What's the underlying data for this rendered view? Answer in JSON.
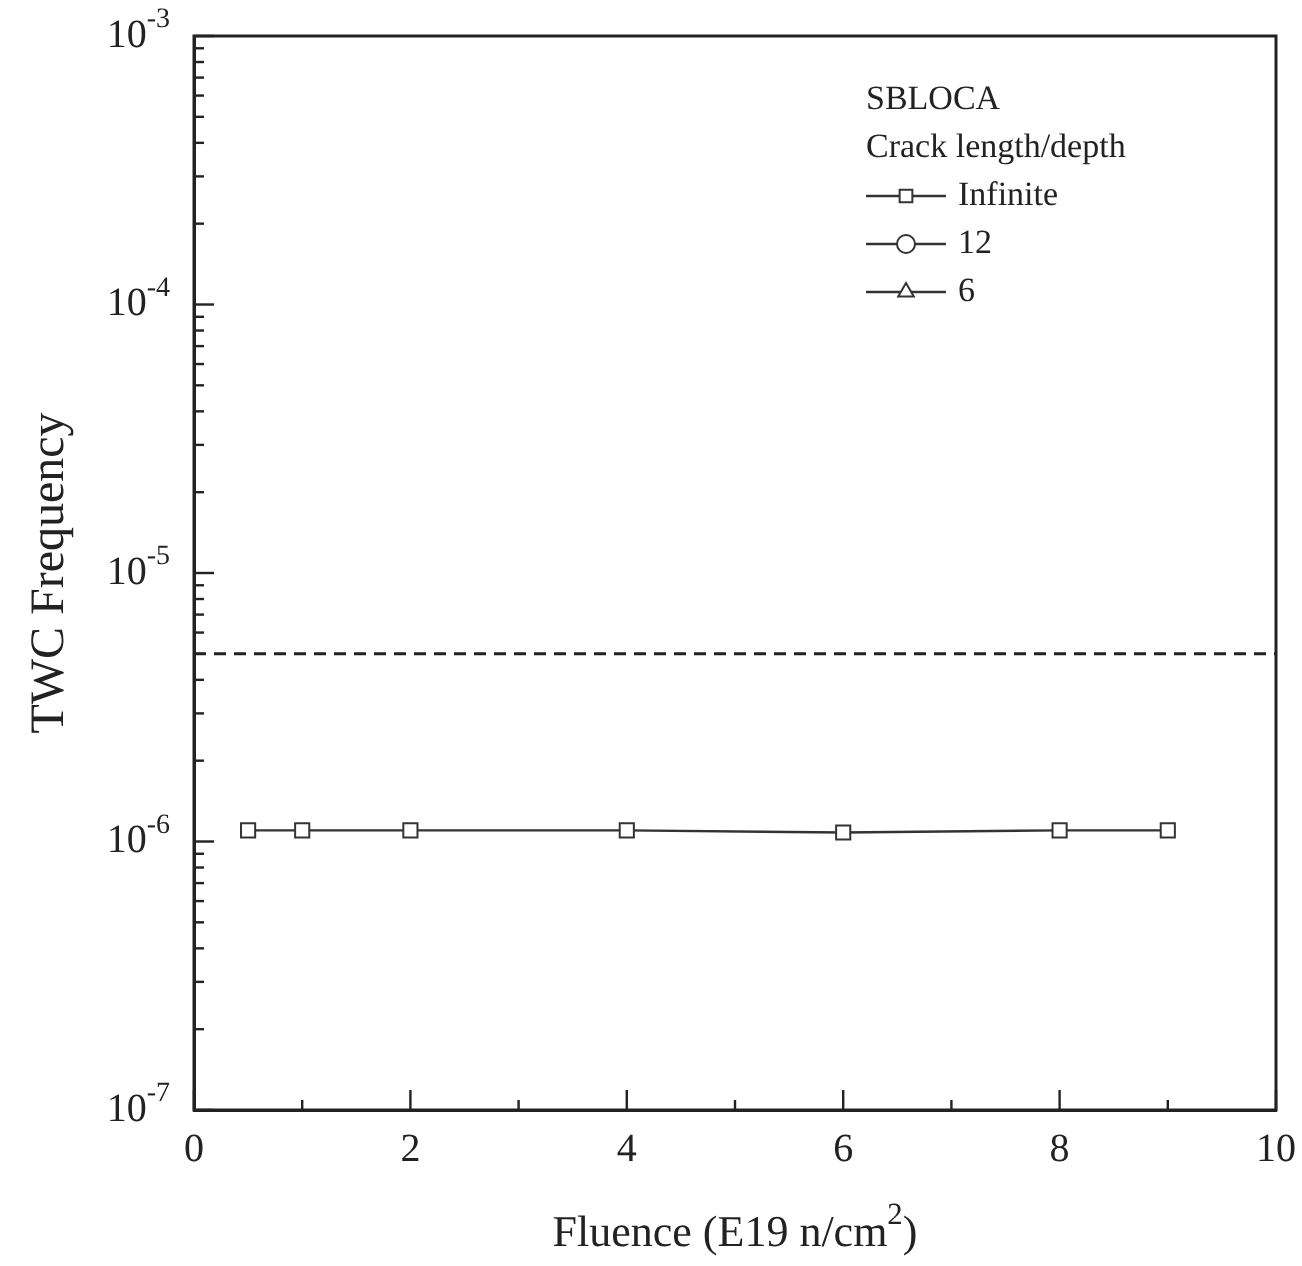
{
  "chart_data": {
    "type": "line",
    "xlabel": "Fluence (E19 n/cm$^{2}$)",
    "ylabel": "TWC Frequency",
    "legend_title": "SBLOCA\nCrack length/depth",
    "legend": "top right",
    "log": "y",
    "grid": false,
    "line_style": "solid",
    "x": [
      0.5,
      1,
      2,
      4,
      6,
      8,
      9
    ],
    "series": [
      {
        "name": "Infinite",
        "color": "#333333",
        "marker": "square",
        "values": [
          1.1e-06,
          1.1e-06,
          1.1e-06,
          1.1e-06,
          1.08e-06,
          1.1e-06,
          1.1e-06
        ]
      },
      {
        "name": "12",
        "color": "#333333",
        "marker": "circle",
        "values": [
          null,
          null,
          null,
          null,
          null,
          null,
          null
        ]
      },
      {
        "name": "6",
        "color": "#333333",
        "marker": "triangle",
        "values": [
          null,
          null,
          null,
          null,
          null,
          null,
          null
        ]
      }
    ],
    "xlim": [
      0,
      10
    ],
    "xticks": [
      0,
      {
        "value": 1,
        "label": null
      },
      2,
      {
        "value": 3,
        "label": null
      },
      4,
      {
        "value": 5,
        "label": null
      },
      6,
      {
        "value": 7,
        "label": null
      },
      8,
      {
        "value": 9,
        "label": null
      },
      10
    ],
    "ylim": [
      1e-07,
      0.001
    ],
    "yticks": [
      {
        "value": 1e-07,
        "label": "10$^{-7}$"
      },
      {
        "value": 2e-07,
        "label": null
      },
      {
        "value": 3e-07,
        "label": null
      },
      {
        "value": 4e-07,
        "label": null
      },
      {
        "value": 5e-07,
        "label": null
      },
      {
        "value": 6e-07,
        "label": null
      },
      {
        "value": 7e-07,
        "label": null
      },
      {
        "value": 8e-07,
        "label": null
      },
      {
        "value": 9e-07,
        "label": null
      },
      {
        "value": 1e-06,
        "label": "10$^{-6}$"
      },
      {
        "value": 2e-06,
        "label": null
      },
      {
        "value": 3e-06,
        "label": null
      },
      {
        "value": 4e-06,
        "label": null
      },
      {
        "value": 5e-06,
        "label": null
      },
      {
        "value": 6e-06,
        "label": null
      },
      {
        "value": 7e-06,
        "label": null
      },
      {
        "value": 8e-06,
        "label": null
      },
      {
        "value": 9e-06,
        "label": null
      },
      {
        "value": 1e-05,
        "label": "10$^{-5}$"
      },
      {
        "value": 2e-05,
        "label": null
      },
      {
        "value": 3e-05,
        "label": null
      },
      {
        "value": 4e-05,
        "label": null
      },
      {
        "value": 5e-05,
        "label": null
      },
      {
        "value": 6e-05,
        "label": null
      },
      {
        "value": 7e-05,
        "label": null
      },
      {
        "value": 8e-05,
        "label": null
      },
      {
        "value": 9e-05,
        "label": null
      },
      {
        "value": 0.0001,
        "label": "10$^{-4}$"
      },
      {
        "value": 0.0002,
        "label": null
      },
      {
        "value": 0.0003,
        "label": null
      },
      {
        "value": 0.0004,
        "label": null
      },
      {
        "value": 0.0005,
        "label": null
      },
      {
        "value": 0.0006,
        "label": null
      },
      {
        "value": 0.0007,
        "label": null
      },
      {
        "value": 0.0008,
        "label": null
      },
      {
        "value": 0.0009,
        "label": null
      },
      {
        "value": 0.001,
        "label": "10$^{-3}$"
      }
    ],
    "ref_lines": [
      {
        "axis": "y",
        "value": 5e-06,
        "color": "#222222",
        "line_style": "dashed"
      }
    ]
  }
}
